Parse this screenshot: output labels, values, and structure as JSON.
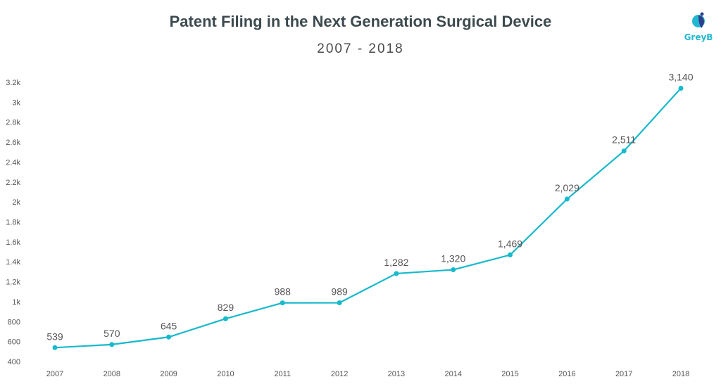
{
  "header": {
    "title": "Patent Filing in the Next Generation Surgical Device",
    "subtitle": "2007 - 2018"
  },
  "logo": {
    "text": "GreyB",
    "colors": [
      "#22b8cf",
      "#2d3e8f"
    ]
  },
  "colors": {
    "line": "#17b9cc",
    "text": "#555555",
    "title": "#3c4a4f"
  },
  "chart_data": {
    "type": "line",
    "title": "Patent Filing in the Next Generation Surgical Device",
    "subtitle": "2007 - 2018",
    "x": [
      "2007",
      "2008",
      "2009",
      "2010",
      "2011",
      "2012",
      "2013",
      "2014",
      "2015",
      "2016",
      "2017",
      "2018"
    ],
    "series": [
      {
        "values": [
          539,
          570,
          645,
          829,
          988,
          989,
          1282,
          1320,
          1469,
          2029,
          2511,
          3140
        ],
        "labels": [
          "539",
          "570",
          "645",
          "829",
          "988",
          "989",
          "1,282",
          "1,320",
          "1,469",
          "2,029",
          "2,511",
          "3,140"
        ],
        "color": "#17b9cc"
      }
    ],
    "ylim": [
      400,
      3200
    ],
    "yticks": [
      400,
      600,
      800,
      1000,
      1200,
      1400,
      1600,
      1800,
      2000,
      2200,
      2400,
      2600,
      2800,
      3000,
      3200
    ],
    "ytick_labels": [
      "400",
      "600",
      "800",
      "1k",
      "1.2k",
      "1.4k",
      "1.6k",
      "1.8k",
      "2k",
      "2.2k",
      "2.4k",
      "2.6k",
      "2.8k",
      "3k",
      "3.2k"
    ],
    "grid": false,
    "legend": false
  }
}
